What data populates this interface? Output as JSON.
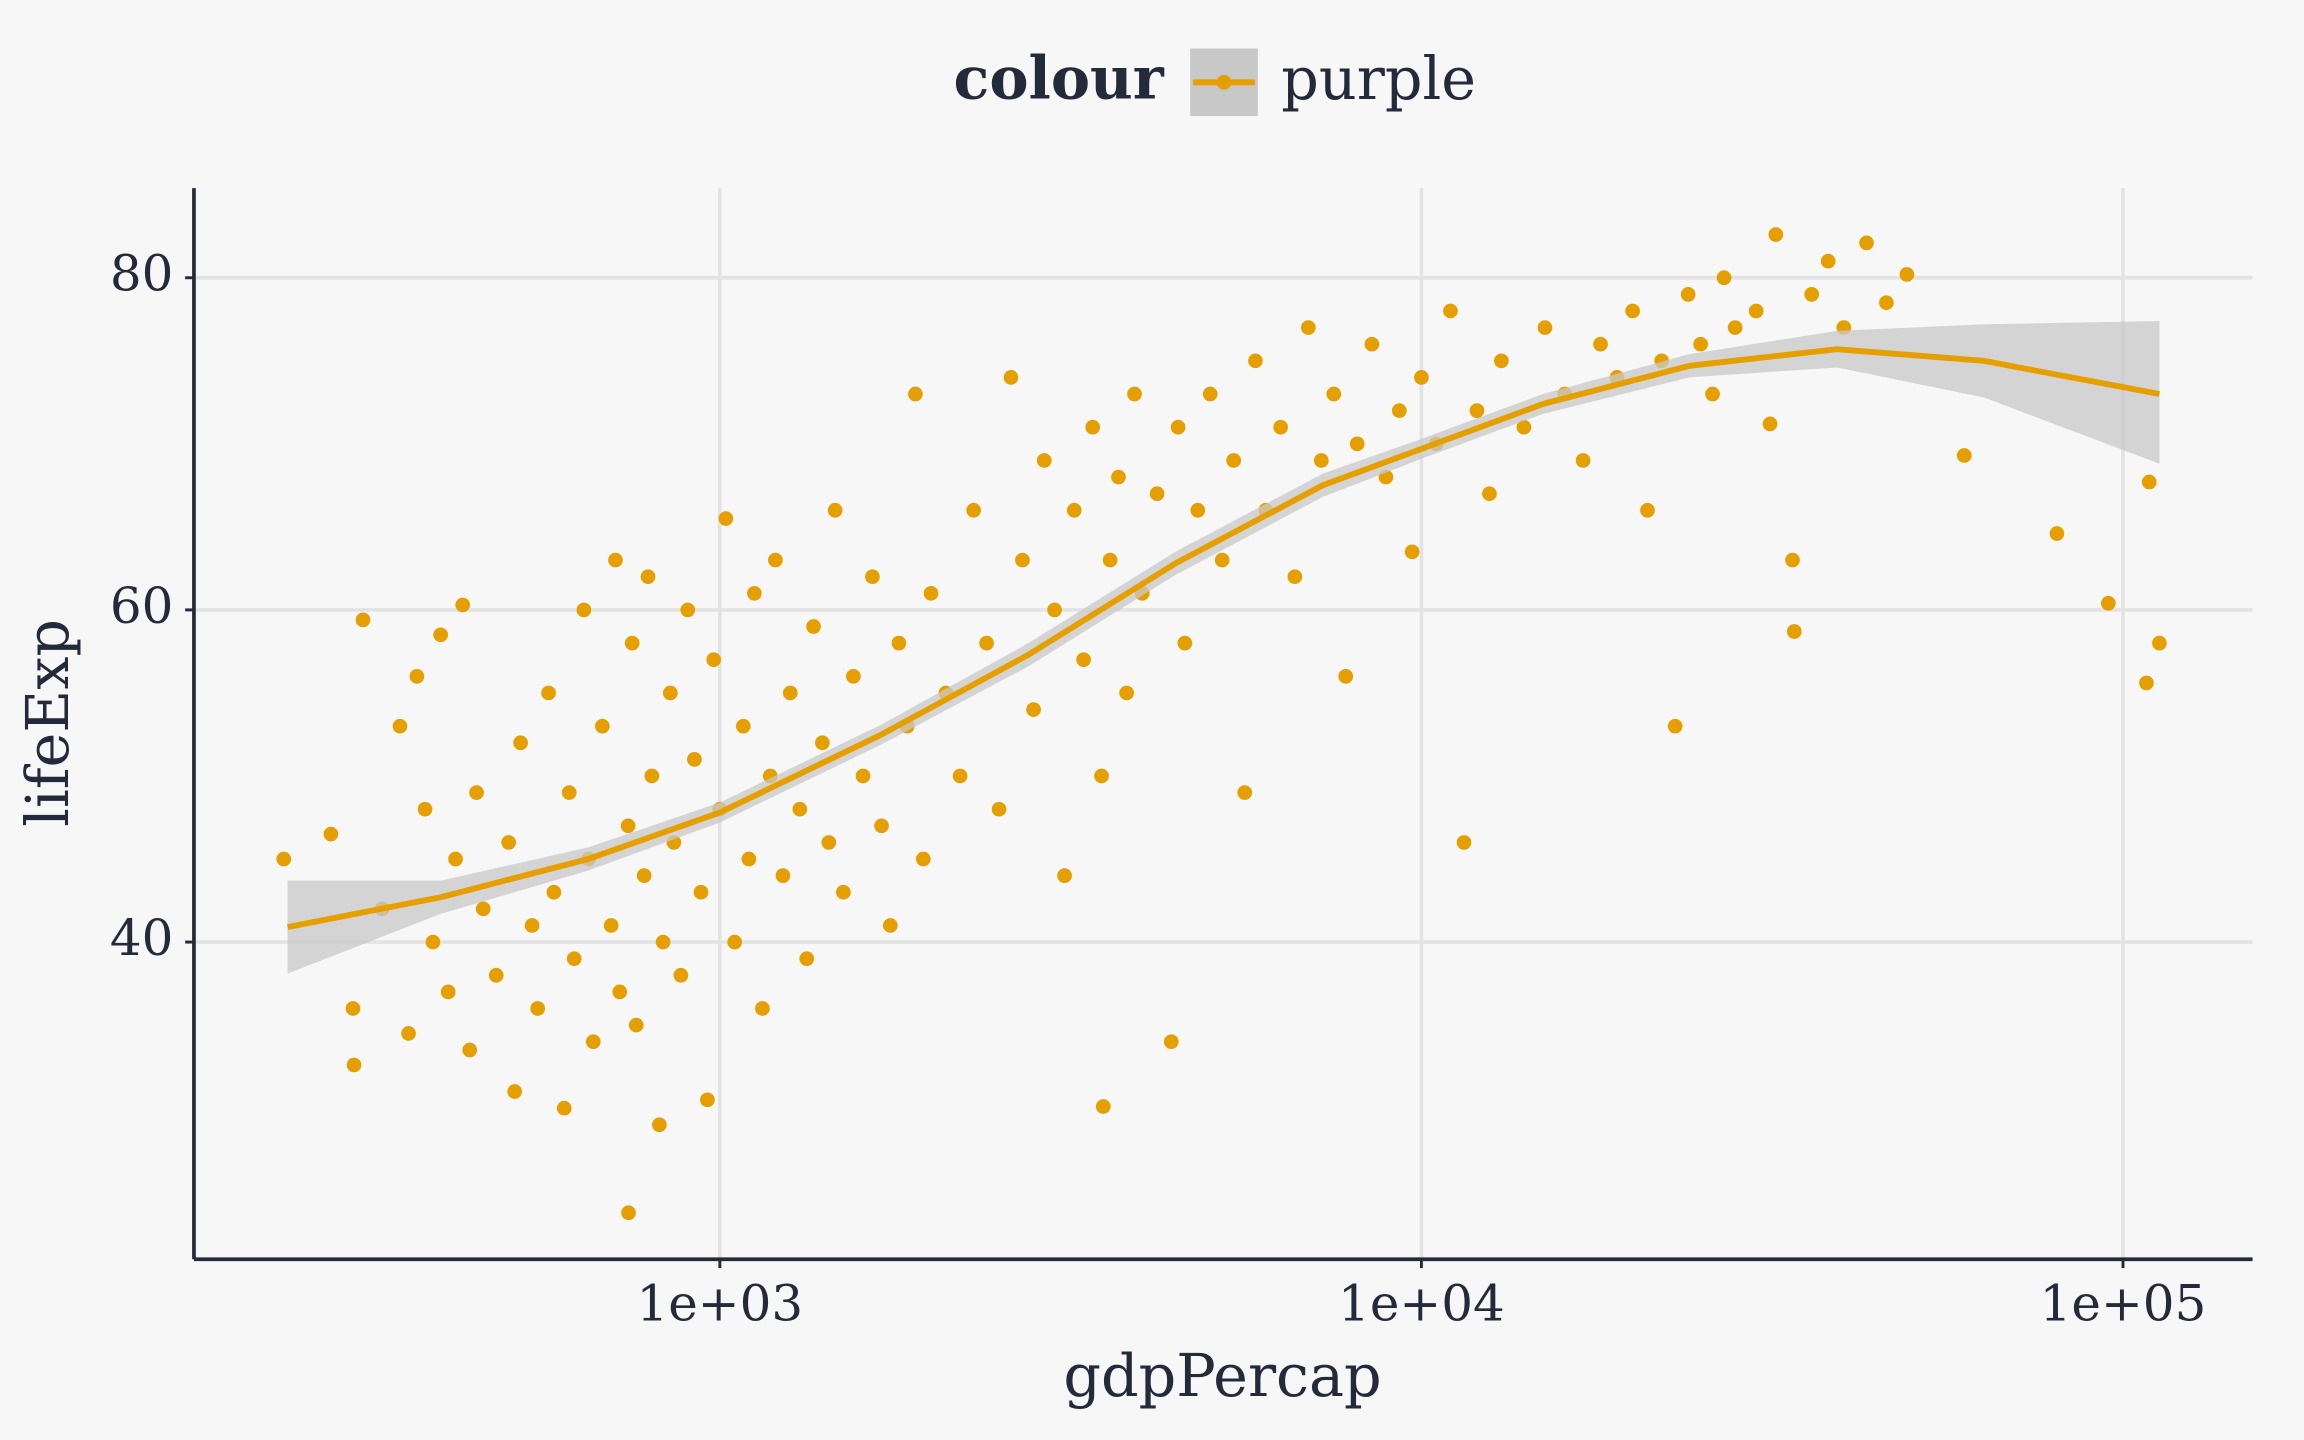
{
  "chart_data": {
    "type": "scatter",
    "x_label": "gdpPercap",
    "y_label": "lifeExp",
    "legend_title": "colour",
    "legend": "top",
    "log_x": true,
    "grid": true,
    "xlim": [
      178,
      153000
    ],
    "ylim": [
      20.9,
      85.4
    ],
    "xticks": [
      {
        "value": 1000,
        "label": "1e+03"
      },
      {
        "value": 10000,
        "label": "1e+04"
      },
      {
        "value": 100000,
        "label": "1e+05"
      }
    ],
    "yticks": [
      40,
      60,
      80
    ],
    "series": [
      {
        "name": "purple",
        "color": "#E69F00",
        "x": [
          300,
          310,
          330,
          350,
          360,
          370,
          380,
          390,
          400,
          410,
          420,
          430,
          440,
          450,
          460,
          480,
          500,
          510,
          520,
          540,
          550,
          570,
          580,
          600,
          610,
          620,
          640,
          650,
          660,
          680,
          700,
          710,
          720,
          740,
          750,
          760,
          780,
          790,
          800,
          820,
          830,
          850,
          860,
          880,
          900,
          920,
          940,
          960,
          980,
          1000,
          1020,
          1050,
          1080,
          1100,
          1120,
          1150,
          1180,
          1200,
          1230,
          1260,
          1300,
          1330,
          1360,
          1400,
          1430,
          1460,
          1500,
          1550,
          1600,
          1650,
          1700,
          1750,
          1800,
          1850,
          1900,
          1950,
          2000,
          2100,
          2200,
          2300,
          2400,
          2500,
          2600,
          2700,
          2800,
          2900,
          3000,
          3100,
          3200,
          3300,
          3400,
          3500,
          3520,
          3600,
          3700,
          3800,
          3900,
          4000,
          4200,
          4400,
          4500,
          4600,
          4800,
          5000,
          5200,
          5400,
          5600,
          5800,
          6000,
          6300,
          6600,
          6900,
          7200,
          7500,
          7800,
          8100,
          8500,
          8900,
          9300,
          9700,
          10000,
          10500,
          11000,
          11500,
          12000,
          12500,
          13000,
          14000,
          15000,
          16000,
          17000,
          18000,
          19000,
          20000,
          21000,
          22000,
          23000,
          24000,
          25000,
          26000,
          27000,
          28000,
          30000,
          31400,
          32000,
          33800,
          34000,
          36000,
          38000,
          40000,
          43100,
          46000,
          49200,
          59400,
          80500,
          95300,
          108000,
          109000,
          112700,
          239,
          279,
          301,
          741
        ],
        "values": [
          36,
          59.4,
          42,
          53,
          34.5,
          56,
          48,
          40,
          58.5,
          37,
          45,
          60.3,
          33.5,
          49,
          42,
          38,
          46,
          31,
          52,
          41,
          36,
          55,
          43,
          30,
          49,
          39,
          60,
          45,
          34,
          53,
          41,
          63,
          37,
          47,
          58,
          35,
          44,
          62,
          50,
          29,
          40,
          55,
          46,
          38,
          60,
          51,
          43,
          30.5,
          57,
          48,
          65.5,
          40,
          53,
          45,
          61,
          36,
          50,
          63,
          44,
          55,
          48,
          39,
          59,
          52,
          46,
          66,
          43,
          56,
          50,
          62,
          47,
          41,
          58,
          53,
          73,
          45,
          61,
          55,
          50,
          66,
          58,
          48,
          74,
          63,
          54,
          69,
          60,
          44,
          66,
          57,
          71,
          50,
          30.1,
          63,
          68,
          55,
          73,
          61,
          67,
          34,
          71,
          58,
          66,
          73,
          63,
          69,
          49,
          75,
          66,
          71,
          62,
          77,
          69,
          73,
          56,
          70,
          76,
          68,
          72,
          63.5,
          74,
          70,
          78,
          46,
          72,
          67,
          75,
          71,
          77,
          73,
          69,
          76,
          74,
          78,
          66,
          75,
          53,
          79,
          76,
          73,
          80,
          77,
          78,
          71.2,
          82.6,
          63,
          58.7,
          79,
          81,
          77,
          82.1,
          78.5,
          80.2,
          69.3,
          64.6,
          60.4,
          55.6,
          67.7,
          58,
          45,
          46.5,
          32.6,
          23.7
        ]
      }
    ],
    "smooth": {
      "color": "#E69F00",
      "band_color": "#c8c8c8",
      "x": [
        242,
        400,
        649,
        1000,
        1700,
        2753,
        4460,
        7230,
        10000,
        14900,
        24100,
        39100,
        63300,
        112700
      ],
      "values": [
        40.9,
        42.7,
        45.0,
        47.8,
        52.5,
        57.3,
        62.8,
        67.5,
        69.7,
        72.4,
        74.7,
        75.7,
        75.0,
        73.0
      ],
      "lower": [
        38.1,
        41.7,
        44.3,
        47.2,
        51.9,
        56.6,
        62.1,
        66.8,
        69.1,
        71.8,
        74.0,
        74.6,
        72.8,
        68.8
      ],
      "upper": [
        43.7,
        43.7,
        45.7,
        48.4,
        53.1,
        58.0,
        63.5,
        68.2,
        70.3,
        73.0,
        75.4,
        76.8,
        77.2,
        77.4
      ]
    }
  }
}
